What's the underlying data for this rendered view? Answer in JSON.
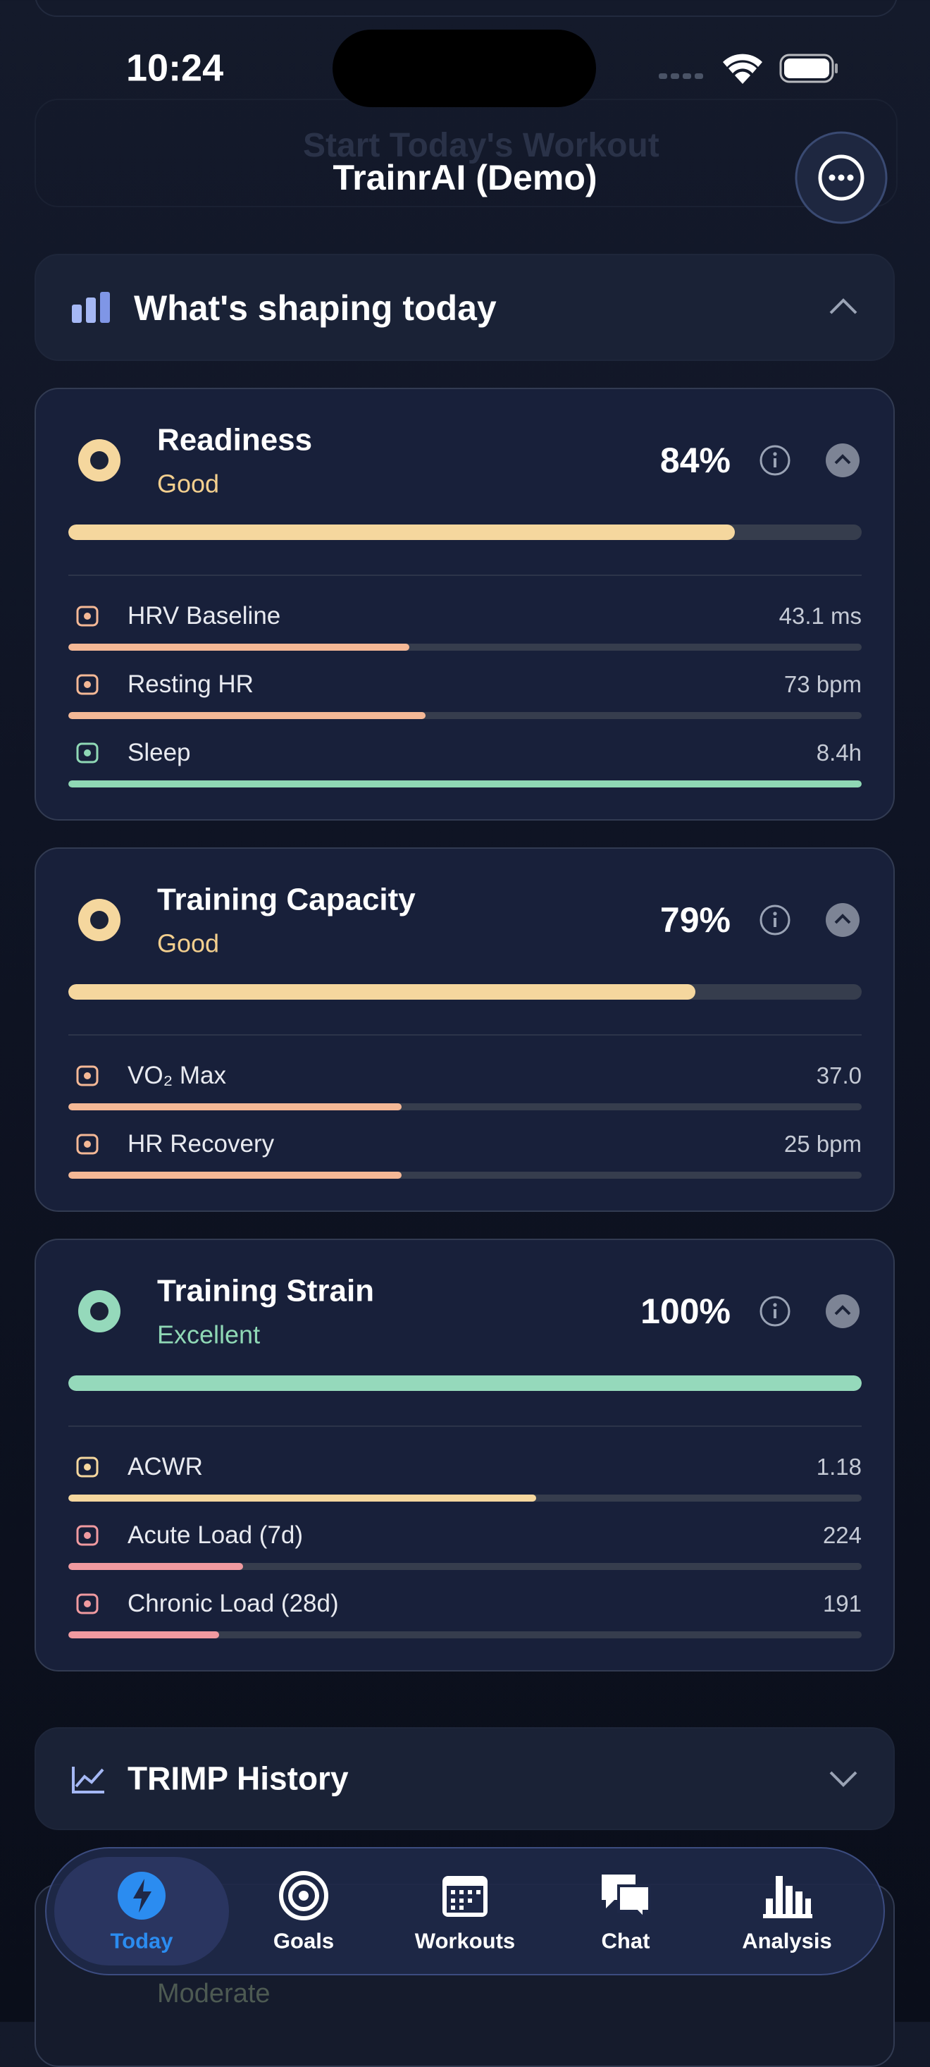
{
  "status_bar": {
    "time": "10:24"
  },
  "header": {
    "title": "TrainrAI (Demo)",
    "background_button": "Start Today's Workout"
  },
  "section": {
    "title": "What's shaping today"
  },
  "cards": [
    {
      "title": "Readiness",
      "status": "Good",
      "status_color": "#f3cf8e",
      "score": {
        "value": 84,
        "label": "84%"
      },
      "color": "#f5d79e",
      "metrics": [
        {
          "label": "HRV Baseline",
          "value": "43.1 ms",
          "fill": 43,
          "color": "#f4b896"
        },
        {
          "label": "Resting HR",
          "value": "73 bpm",
          "fill": 45,
          "color": "#f4b896"
        },
        {
          "label": "Sleep",
          "value": "8.4h",
          "fill": 100,
          "color": "#8fd8b5"
        }
      ]
    },
    {
      "title": "Training Capacity",
      "status": "Good",
      "status_color": "#f3cf8e",
      "score": {
        "value": 79,
        "label": "79%"
      },
      "color": "#f5d79e",
      "metrics": [
        {
          "label": "VO₂ Max",
          "value": "37.0",
          "fill": 42,
          "color": "#f4b896"
        },
        {
          "label": "HR Recovery",
          "value": "25 bpm",
          "fill": 42,
          "color": "#f4b896"
        }
      ]
    },
    {
      "title": "Training Strain",
      "status": "Excellent",
      "status_color": "#8fd8b5",
      "score": {
        "value": 100,
        "label": "100%"
      },
      "color": "#95d9bb",
      "metrics": [
        {
          "label": "ACWR",
          "value": "1.18",
          "fill": 59,
          "color": "#f5d79e"
        },
        {
          "label": "Acute Load (7d)",
          "value": "224",
          "fill": 22,
          "color": "#f09aa0"
        },
        {
          "label": "Chronic Load (28d)",
          "value": "191",
          "fill": 19,
          "color": "#f09aa0"
        }
      ]
    }
  ],
  "trimp": {
    "title": "TRIMP History"
  },
  "background_card": {
    "status": "Moderate"
  },
  "tabs": [
    {
      "label": "Today",
      "active": true
    },
    {
      "label": "Goals",
      "active": false
    },
    {
      "label": "Workouts",
      "active": false
    },
    {
      "label": "Chat",
      "active": false
    },
    {
      "label": "Analysis",
      "active": false
    }
  ]
}
